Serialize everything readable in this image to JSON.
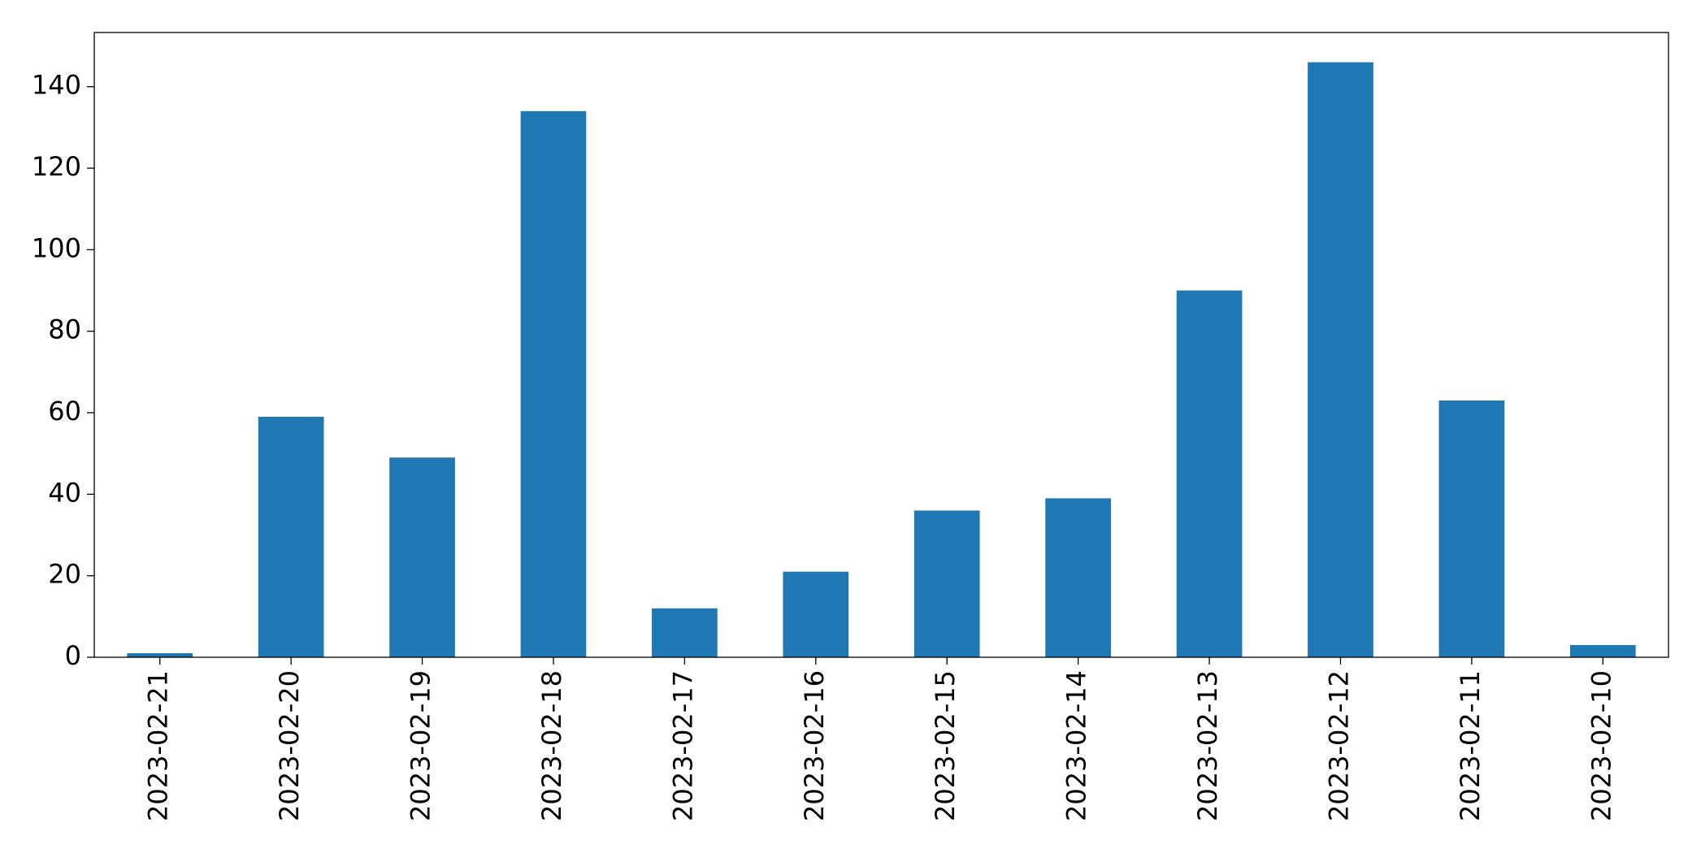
{
  "chart_data": {
    "type": "bar",
    "categories": [
      "2023-02-21",
      "2023-02-20",
      "2023-02-19",
      "2023-02-18",
      "2023-02-17",
      "2023-02-16",
      "2023-02-15",
      "2023-02-14",
      "2023-02-13",
      "2023-02-12",
      "2023-02-11",
      "2023-02-10"
    ],
    "values": [
      1,
      59,
      49,
      134,
      12,
      21,
      36,
      39,
      90,
      146,
      63,
      3
    ],
    "color": "#1f77b4",
    "ylim": [
      0,
      153.3
    ],
    "yticks": [
      0,
      20,
      40,
      60,
      80,
      100,
      120,
      140
    ],
    "grid": false
  }
}
